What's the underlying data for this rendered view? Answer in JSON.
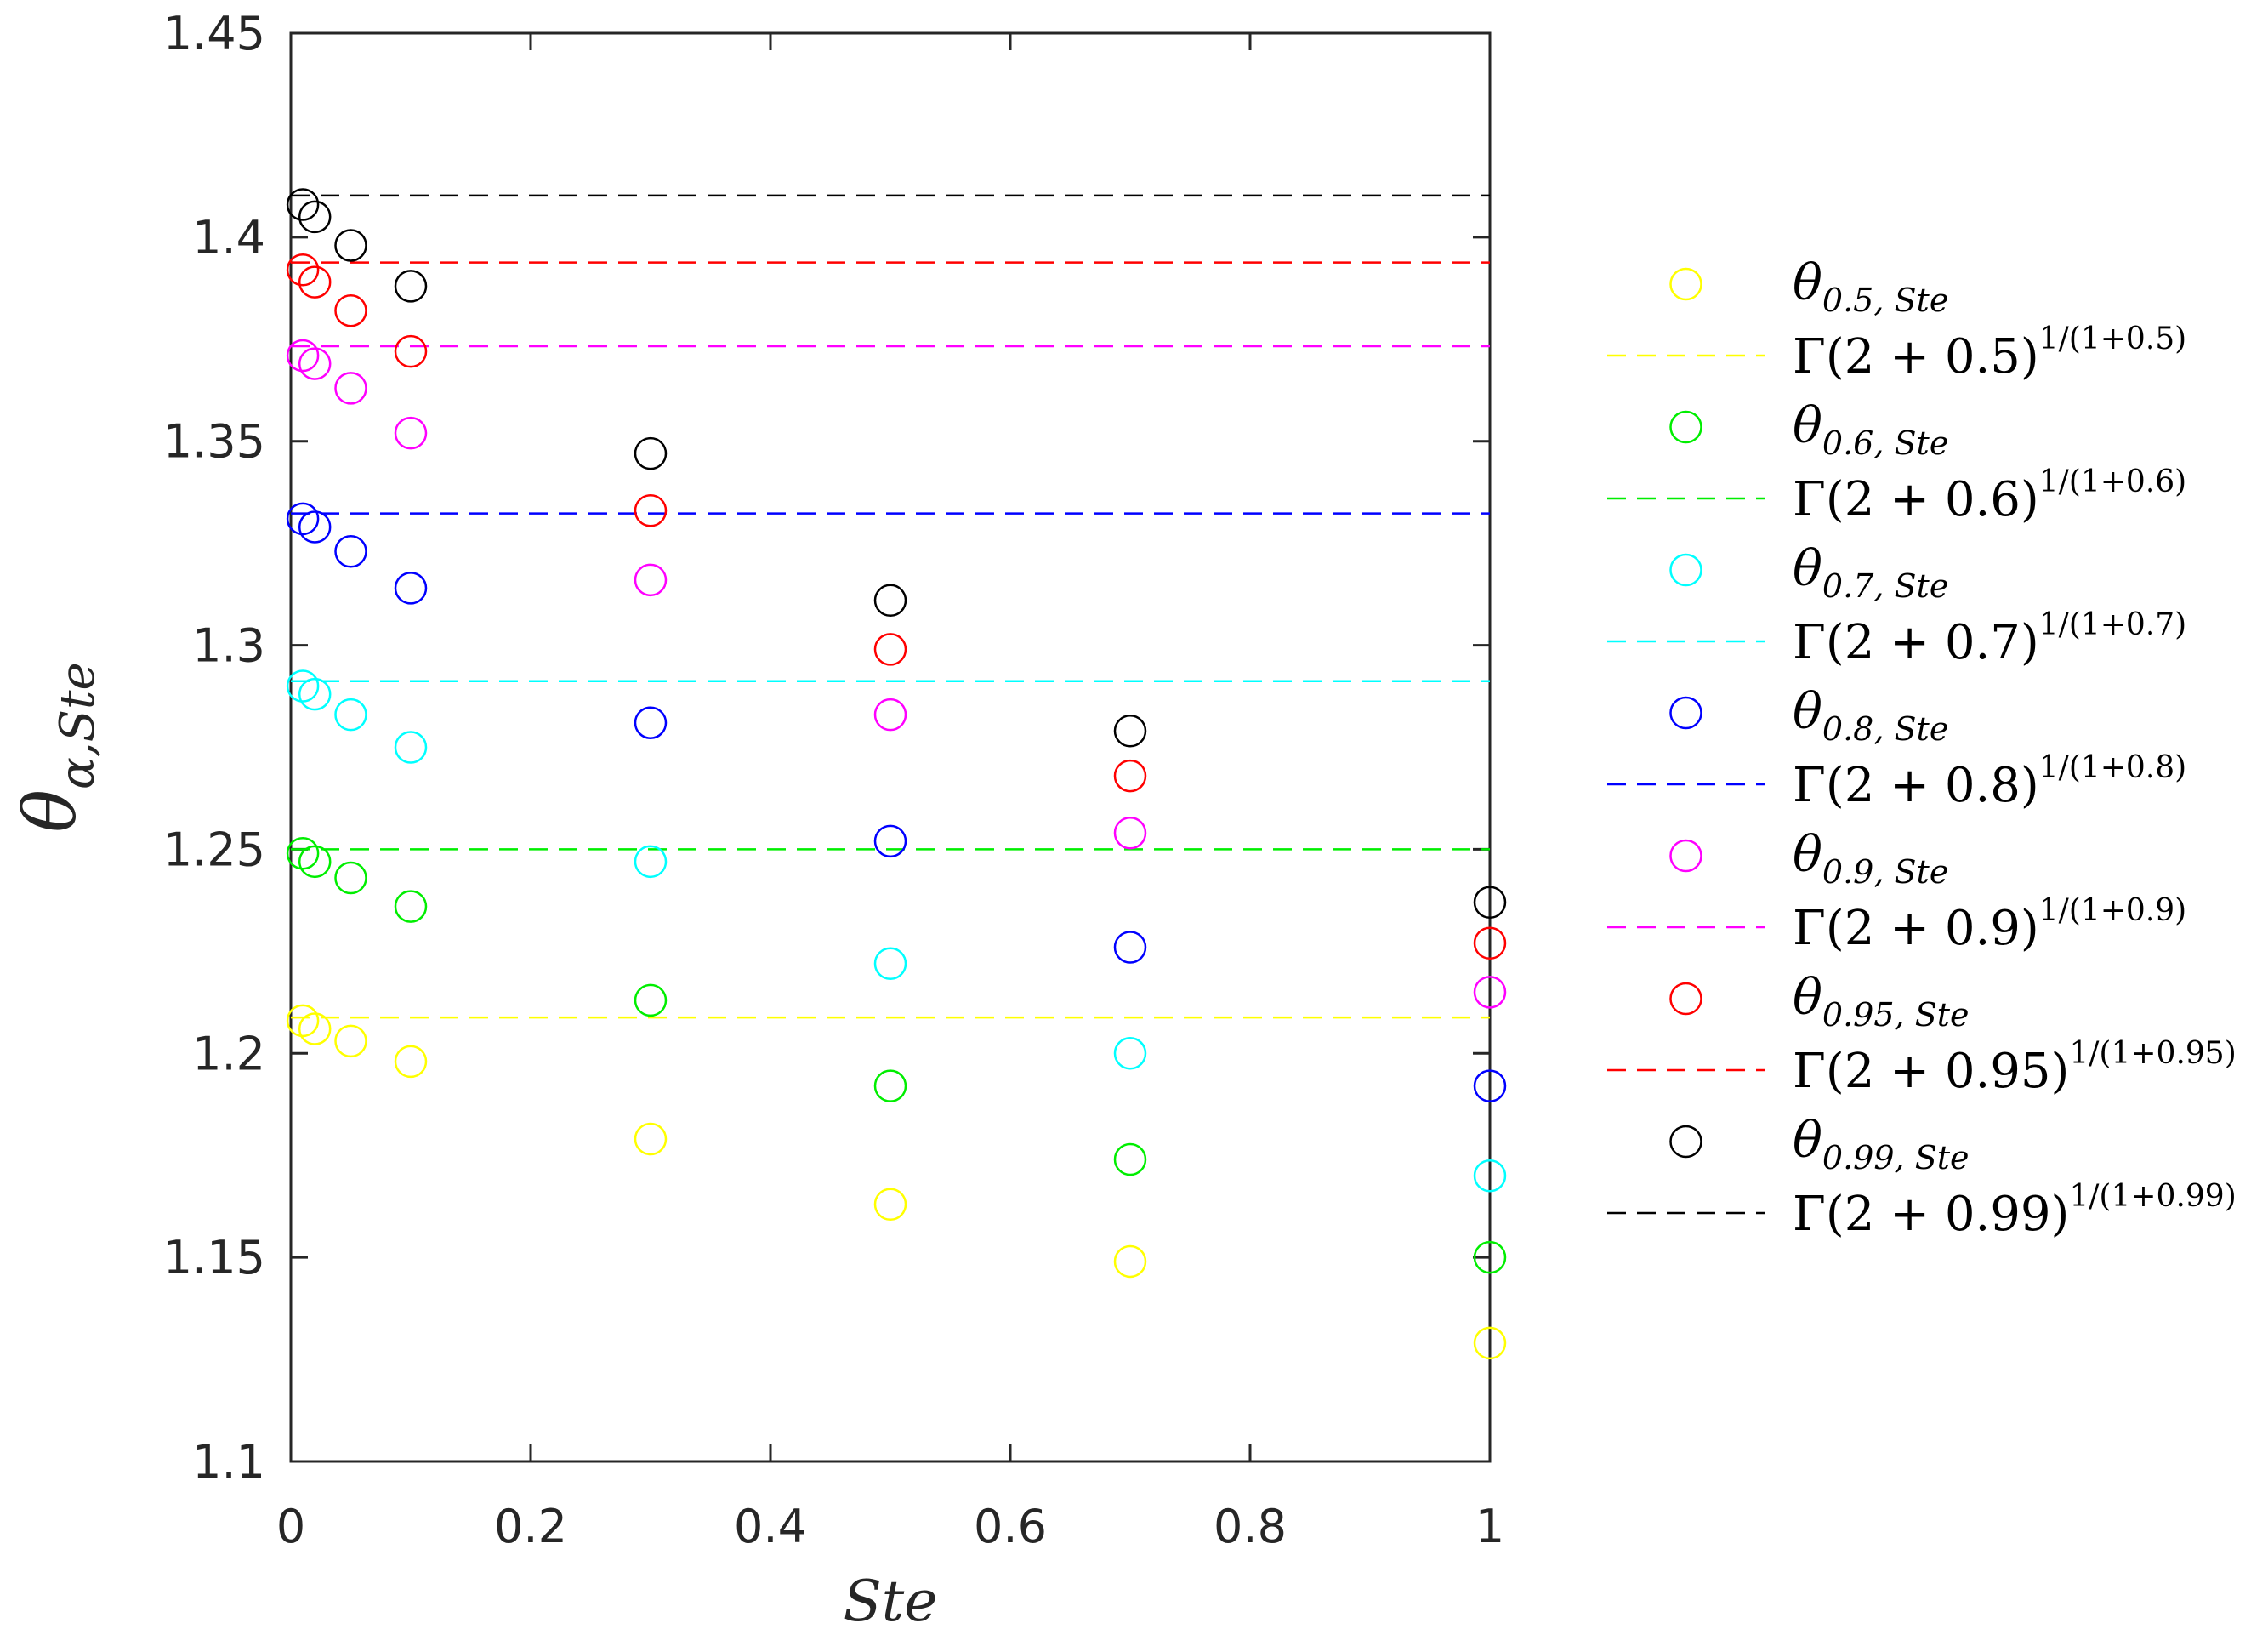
{
  "chart_data": {
    "type": "scatter",
    "xlabel": "Ste",
    "ylabel": "θ",
    "ylabel_sub": "α,Ste",
    "xlim": [
      0,
      1
    ],
    "ylim": [
      1.1,
      1.45
    ],
    "xticks": [
      "0",
      "0.2",
      "0.4",
      "0.6",
      "0.8",
      "1"
    ],
    "yticks": [
      "1.1",
      "1.15",
      "1.2",
      "1.25",
      "1.3",
      "1.35",
      "1.4",
      "1.45"
    ],
    "grid": false,
    "legend_position": "right, outside plot",
    "x": [
      0.01,
      0.02,
      0.05,
      0.1,
      0.3,
      0.5,
      0.7,
      1.0
    ],
    "series": [
      {
        "alpha": "0.5",
        "color": "#ffff00",
        "marker": "open-circle",
        "values": [
          1.208,
          1.206,
          1.203,
          1.198,
          1.179,
          1.163,
          1.149,
          1.129
        ],
        "reference_line": 1.2088,
        "legend_label_base": "θ",
        "legend_label_sub": "0.5, Ste",
        "legend_label_line": "Γ(2 + 0.5)",
        "legend_label_exp": "1/(1+0.5)"
      },
      {
        "alpha": "0.6",
        "color": "#00ee00",
        "marker": "open-circle",
        "values": [
          1.249,
          1.247,
          1.243,
          1.236,
          1.213,
          1.192,
          1.174,
          1.15
        ],
        "reference_line": 1.25,
        "legend_label_base": "θ",
        "legend_label_sub": "0.6, Ste",
        "legend_label_line": "Γ(2 + 0.6)",
        "legend_label_exp": "1/(1+0.6)"
      },
      {
        "alpha": "0.7",
        "color": "#00ffff",
        "marker": "open-circle",
        "values": [
          1.29,
          1.288,
          1.283,
          1.275,
          1.247,
          1.222,
          1.2,
          1.17
        ],
        "reference_line": 1.2912,
        "legend_label_base": "θ",
        "legend_label_sub": "0.7, Ste",
        "legend_label_line": "Γ(2 + 0.7)",
        "legend_label_exp": "1/(1+0.7)"
      },
      {
        "alpha": "0.8",
        "color": "#0000ff",
        "marker": "open-circle",
        "values": [
          1.331,
          1.329,
          1.323,
          1.314,
          1.281,
          1.252,
          1.226,
          1.192
        ],
        "reference_line": 1.3323,
        "legend_label_base": "θ",
        "legend_label_sub": "0.8, Ste",
        "legend_label_line": "Γ(2 + 0.8)",
        "legend_label_exp": "1/(1+0.8)"
      },
      {
        "alpha": "0.9",
        "color": "#ff00ff",
        "marker": "open-circle",
        "values": [
          1.371,
          1.369,
          1.363,
          1.352,
          1.316,
          1.283,
          1.254,
          1.215
        ],
        "reference_line": 1.3733,
        "legend_label_base": "θ",
        "legend_label_sub": "0.9, Ste",
        "legend_label_line": "Γ(2 + 0.9)",
        "legend_label_exp": "1/(1+0.9)"
      },
      {
        "alpha": "0.95",
        "color": "#ff0000",
        "marker": "open-circle",
        "values": [
          1.392,
          1.389,
          1.382,
          1.372,
          1.333,
          1.299,
          1.268,
          1.227
        ],
        "reference_line": 1.3938,
        "legend_label_base": "θ",
        "legend_label_sub": "0.95, Ste",
        "legend_label_line": "Γ(2 + 0.95)",
        "legend_label_exp": "1/(1+0.95)"
      },
      {
        "alpha": "0.99",
        "color": "#000000",
        "marker": "open-circle",
        "values": [
          1.408,
          1.405,
          1.398,
          1.388,
          1.347,
          1.311,
          1.279,
          1.237
        ],
        "reference_line": 1.4102,
        "legend_label_base": "θ",
        "legend_label_sub": "0.99, Ste",
        "legend_label_line": "Γ(2 + 0.99)",
        "legend_label_exp": "1/(1+0.99)"
      }
    ]
  }
}
